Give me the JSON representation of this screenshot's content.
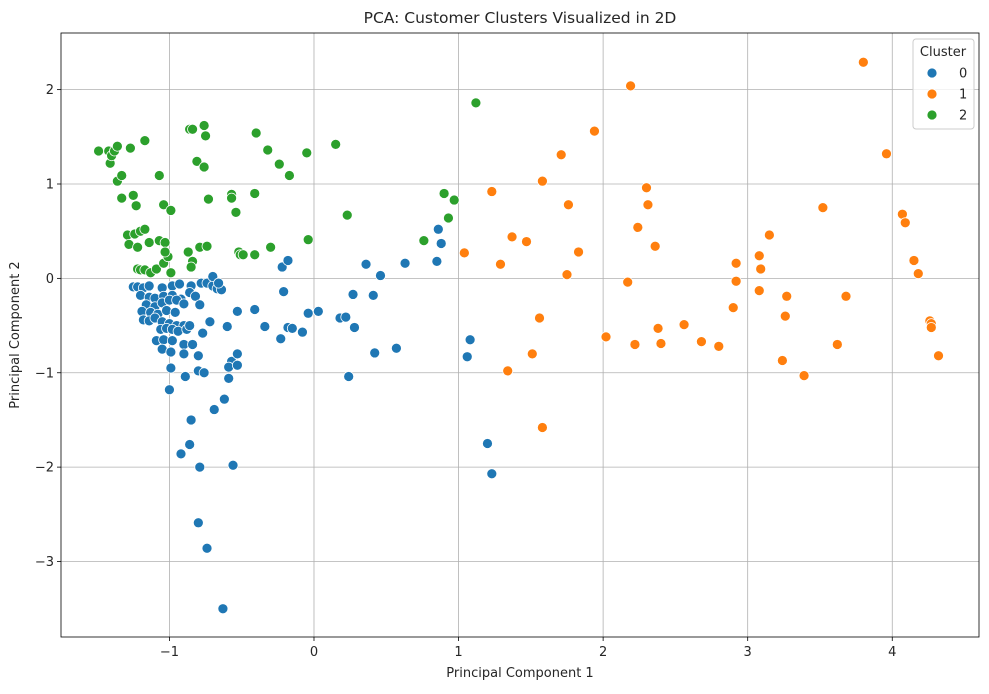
{
  "chart_data": {
    "type": "scatter",
    "title": "PCA: Customer Clusters Visualized in 2D",
    "xlabel": "Principal Component 1",
    "ylabel": "Principal Component 2",
    "xlim": [
      -1.75,
      4.6
    ],
    "ylim": [
      -3.8,
      2.6
    ],
    "xticks": [
      -1,
      0,
      1,
      2,
      3,
      4
    ],
    "yticks": [
      -3,
      -2,
      -1,
      0,
      1,
      2
    ],
    "xtick_labels": [
      "−1",
      "0",
      "1",
      "2",
      "3",
      "4"
    ],
    "ytick_labels": [
      "−3",
      "−2",
      "−1",
      "0",
      "1",
      "2"
    ],
    "grid": true,
    "legend": {
      "title": "Cluster",
      "position": "top-right"
    },
    "series": [
      {
        "name": "0",
        "color": "#1f77b4",
        "points": [
          [
            -1.25,
            -0.09
          ],
          [
            -1.22,
            -0.09
          ],
          [
            -1.18,
            -0.1
          ],
          [
            -1.14,
            -0.08
          ],
          [
            -1.05,
            -0.1
          ],
          [
            -0.98,
            -0.08
          ],
          [
            -0.93,
            -0.06
          ],
          [
            -0.85,
            -0.08
          ],
          [
            -0.78,
            -0.05
          ],
          [
            -0.74,
            -0.05
          ],
          [
            -0.7,
            -0.08
          ],
          [
            -0.67,
            -0.11
          ],
          [
            -0.64,
            -0.12
          ],
          [
            -1.2,
            -0.18
          ],
          [
            -1.14,
            -0.2
          ],
          [
            -1.1,
            -0.21
          ],
          [
            -1.04,
            -0.19
          ],
          [
            -0.98,
            -0.18
          ],
          [
            -0.92,
            -0.22
          ],
          [
            -0.86,
            -0.15
          ],
          [
            -0.82,
            -0.19
          ],
          [
            -0.7,
            0.02
          ],
          [
            -0.66,
            -0.05
          ],
          [
            -1.16,
            -0.28
          ],
          [
            -1.1,
            -0.3
          ],
          [
            -1.05,
            -0.26
          ],
          [
            -1.0,
            -0.23
          ],
          [
            -0.95,
            -0.23
          ],
          [
            -0.9,
            -0.27
          ],
          [
            -0.79,
            -0.28
          ],
          [
            -1.19,
            -0.35
          ],
          [
            -1.13,
            -0.36
          ],
          [
            -1.08,
            -0.38
          ],
          [
            -1.02,
            -0.34
          ],
          [
            -0.96,
            -0.36
          ],
          [
            -0.72,
            -0.46
          ],
          [
            -1.18,
            -0.44
          ],
          [
            -1.14,
            -0.45
          ],
          [
            -1.1,
            -0.42
          ],
          [
            -1.05,
            -0.46
          ],
          [
            -1.0,
            -0.48
          ],
          [
            -0.95,
            -0.5
          ],
          [
            -0.9,
            -0.5
          ],
          [
            -1.06,
            -0.54
          ],
          [
            -1.02,
            -0.53
          ],
          [
            -0.98,
            -0.54
          ],
          [
            -0.94,
            -0.56
          ],
          [
            -0.88,
            -0.54
          ],
          [
            -0.86,
            -0.5
          ],
          [
            -0.77,
            -0.58
          ],
          [
            -0.6,
            -0.51
          ],
          [
            -1.09,
            -0.66
          ],
          [
            -1.04,
            -0.65
          ],
          [
            -0.98,
            -0.66
          ],
          [
            -0.9,
            -0.7
          ],
          [
            -0.84,
            -0.7
          ],
          [
            -1.05,
            -0.75
          ],
          [
            -0.99,
            -0.78
          ],
          [
            -0.9,
            -0.8
          ],
          [
            -0.8,
            -0.82
          ],
          [
            -0.57,
            -0.88
          ],
          [
            -0.59,
            -0.94
          ],
          [
            -0.53,
            -0.8
          ],
          [
            -0.53,
            -0.92
          ],
          [
            -0.99,
            -0.95
          ],
          [
            -0.89,
            -1.04
          ],
          [
            -0.8,
            -0.98
          ],
          [
            -0.76,
            -1.0
          ],
          [
            -0.59,
            -1.06
          ],
          [
            -1.0,
            -1.18
          ],
          [
            -0.62,
            -1.28
          ],
          [
            -0.69,
            -1.39
          ],
          [
            -0.85,
            -1.5
          ],
          [
            -0.92,
            -1.86
          ],
          [
            -0.86,
            -1.76
          ],
          [
            -0.79,
            -2.0
          ],
          [
            -0.56,
            -1.98
          ],
          [
            -0.8,
            -2.59
          ],
          [
            -0.74,
            -2.86
          ],
          [
            -0.63,
            -3.5
          ],
          [
            -0.53,
            -0.35
          ],
          [
            -0.41,
            -0.33
          ],
          [
            -0.34,
            -0.51
          ],
          [
            -0.23,
            -0.64
          ],
          [
            -0.21,
            -0.14
          ],
          [
            -0.18,
            -0.52
          ],
          [
            -0.15,
            -0.53
          ],
          [
            -0.08,
            -0.57
          ],
          [
            -0.04,
            -0.37
          ],
          [
            0.03,
            -0.35
          ],
          [
            -0.22,
            0.12
          ],
          [
            -0.18,
            0.19
          ],
          [
            0.18,
            -0.42
          ],
          [
            0.22,
            -0.41
          ],
          [
            0.27,
            -0.17
          ],
          [
            0.28,
            -0.52
          ],
          [
            0.36,
            0.15
          ],
          [
            0.41,
            -0.18
          ],
          [
            0.42,
            -0.79
          ],
          [
            0.46,
            0.03
          ],
          [
            0.57,
            -0.74
          ],
          [
            0.63,
            0.16
          ],
          [
            0.24,
            -1.04
          ],
          [
            0.85,
            0.18
          ],
          [
            0.86,
            0.52
          ],
          [
            0.88,
            0.37
          ],
          [
            1.06,
            -0.83
          ],
          [
            1.08,
            -0.65
          ],
          [
            1.2,
            -1.75
          ],
          [
            1.23,
            -2.07
          ]
        ]
      },
      {
        "name": "1",
        "color": "#ff7f0e",
        "points": [
          [
            1.04,
            0.27
          ],
          [
            1.23,
            0.92
          ],
          [
            1.29,
            0.15
          ],
          [
            1.34,
            -0.98
          ],
          [
            1.37,
            0.44
          ],
          [
            1.47,
            0.39
          ],
          [
            1.51,
            -0.8
          ],
          [
            1.56,
            -0.42
          ],
          [
            1.58,
            1.03
          ],
          [
            1.58,
            -1.58
          ],
          [
            1.71,
            1.31
          ],
          [
            1.75,
            0.04
          ],
          [
            1.76,
            0.78
          ],
          [
            1.83,
            0.28
          ],
          [
            1.94,
            1.56
          ],
          [
            2.02,
            -0.62
          ],
          [
            2.17,
            -0.04
          ],
          [
            2.19,
            2.04
          ],
          [
            2.22,
            -0.7
          ],
          [
            2.24,
            0.54
          ],
          [
            2.3,
            0.96
          ],
          [
            2.31,
            0.78
          ],
          [
            2.36,
            0.34
          ],
          [
            2.38,
            -0.53
          ],
          [
            2.4,
            -0.69
          ],
          [
            2.56,
            -0.49
          ],
          [
            2.68,
            -0.67
          ],
          [
            2.8,
            -0.72
          ],
          [
            2.9,
            -0.31
          ],
          [
            2.92,
            0.16
          ],
          [
            2.92,
            -0.03
          ],
          [
            3.08,
            0.24
          ],
          [
            3.08,
            -0.13
          ],
          [
            3.09,
            0.1
          ],
          [
            3.15,
            0.46
          ],
          [
            3.24,
            -0.87
          ],
          [
            3.26,
            -0.4
          ],
          [
            3.27,
            -0.19
          ],
          [
            3.39,
            -1.03
          ],
          [
            3.52,
            0.75
          ],
          [
            3.62,
            -0.7
          ],
          [
            3.68,
            -0.19
          ],
          [
            3.8,
            2.29
          ],
          [
            3.96,
            1.32
          ],
          [
            4.07,
            0.68
          ],
          [
            4.09,
            0.59
          ],
          [
            4.15,
            0.19
          ],
          [
            4.18,
            0.05
          ],
          [
            4.26,
            -0.45
          ],
          [
            4.27,
            -0.48
          ],
          [
            4.27,
            -0.52
          ],
          [
            4.32,
            -0.82
          ]
        ]
      },
      {
        "name": "2",
        "color": "#2ca02c",
        "points": [
          [
            -1.49,
            1.35
          ],
          [
            -1.42,
            1.35
          ],
          [
            -1.41,
            1.22
          ],
          [
            -1.4,
            1.3
          ],
          [
            -1.38,
            1.35
          ],
          [
            -1.36,
            1.4
          ],
          [
            -1.36,
            1.03
          ],
          [
            -1.33,
            1.09
          ],
          [
            -1.33,
            0.85
          ],
          [
            -1.27,
            1.38
          ],
          [
            -1.25,
            0.88
          ],
          [
            -1.23,
            0.77
          ],
          [
            -1.17,
            1.46
          ],
          [
            -1.07,
            1.09
          ],
          [
            -1.04,
            0.78
          ],
          [
            -0.99,
            0.72
          ],
          [
            -0.86,
            1.58
          ],
          [
            -0.84,
            1.58
          ],
          [
            -0.81,
            1.24
          ],
          [
            -0.76,
            1.18
          ],
          [
            -0.76,
            1.62
          ],
          [
            -0.75,
            1.51
          ],
          [
            -0.73,
            0.84
          ],
          [
            -0.57,
            0.89
          ],
          [
            -0.57,
            0.85
          ],
          [
            -0.54,
            0.7
          ],
          [
            -0.41,
            0.9
          ],
          [
            -0.4,
            1.54
          ],
          [
            -0.32,
            1.36
          ],
          [
            -0.24,
            1.21
          ],
          [
            -0.17,
            1.09
          ],
          [
            -0.05,
            1.33
          ],
          [
            0.15,
            1.42
          ],
          [
            0.23,
            0.67
          ],
          [
            -1.29,
            0.46
          ],
          [
            -1.24,
            0.47
          ],
          [
            -1.2,
            0.5
          ],
          [
            -1.17,
            0.52
          ],
          [
            -1.14,
            0.38
          ],
          [
            -1.07,
            0.4
          ],
          [
            -1.03,
            0.38
          ],
          [
            -1.28,
            0.36
          ],
          [
            -1.22,
            0.33
          ],
          [
            -1.22,
            0.1
          ],
          [
            -1.2,
            0.09
          ],
          [
            -1.17,
            0.09
          ],
          [
            -1.13,
            0.06
          ],
          [
            -1.09,
            0.1
          ],
          [
            -1.04,
            0.16
          ],
          [
            -1.01,
            0.23
          ],
          [
            -0.99,
            0.06
          ],
          [
            -1.03,
            0.28
          ],
          [
            -0.87,
            0.28
          ],
          [
            -0.84,
            0.18
          ],
          [
            -0.85,
            0.12
          ],
          [
            -0.79,
            0.33
          ],
          [
            -0.74,
            0.34
          ],
          [
            -0.52,
            0.28
          ],
          [
            -0.51,
            0.25
          ],
          [
            -0.49,
            0.25
          ],
          [
            -0.41,
            0.25
          ],
          [
            -0.3,
            0.33
          ],
          [
            -0.04,
            0.41
          ],
          [
            0.76,
            0.4
          ],
          [
            0.93,
            0.64
          ],
          [
            0.97,
            0.83
          ],
          [
            0.9,
            0.9
          ],
          [
            1.12,
            1.86
          ]
        ]
      }
    ]
  }
}
